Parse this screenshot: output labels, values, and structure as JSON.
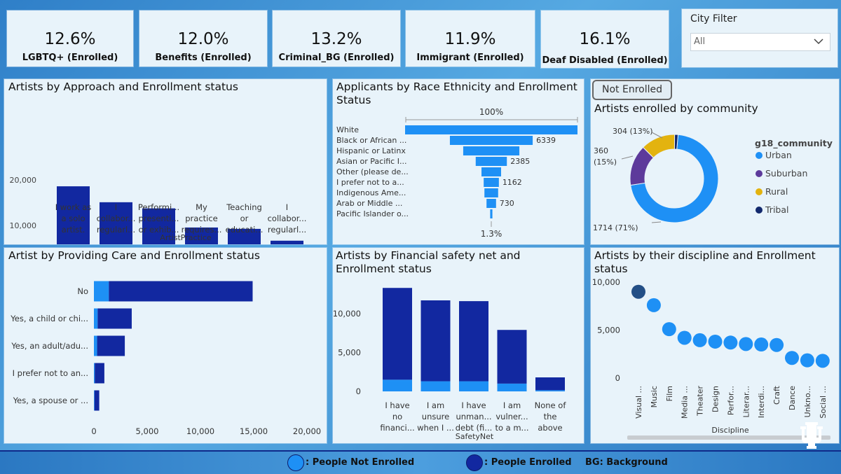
{
  "kpis": [
    {
      "value": "12.6%",
      "label": "LGBTQ+ (Enrolled)"
    },
    {
      "value": "12.0%",
      "label": "Benefits (Enrolled)"
    },
    {
      "value": "13.2%",
      "label": "Criminal_BG (Enrolled)"
    },
    {
      "value": "11.9%",
      "label": "Immigrant (Enrolled)"
    },
    {
      "value": "16.1%",
      "label": "Deaf Disabled (Enrolled)"
    }
  ],
  "city_filter": {
    "title": "City Filter",
    "selected": "All"
  },
  "toggle_button": {
    "label": "Not Enrolled"
  },
  "colors": {
    "not_enrolled": "#1e90f5",
    "enrolled": "#1228a0",
    "scatter_dark": "#234f86",
    "rural": "#e3b30f",
    "suburban": "#5d3a9b",
    "tribal": "#12296d"
  },
  "footer": {
    "not_enrolled_label": ": People Not Enrolled",
    "enrolled_label": ": People Enrolled",
    "bg_note": "BG: Background"
  },
  "chart_data": [
    {
      "id": "approach",
      "type": "bar",
      "title": "Artists by Approach and Enrollment status",
      "xlabel": "ArtistPractice",
      "ylabel": "",
      "ylim": [
        0,
        20000
      ],
      "yticks": [
        "0",
        "10,000",
        "20,000"
      ],
      "categories": [
        [
          "I work as",
          "a solo",
          "artist."
        ],
        [
          "I",
          "collabor...",
          "regularl..."
        ],
        [
          "Performi...",
          "presenti...",
          "or exhib..."
        ],
        [
          "My",
          "practice",
          "requires..."
        ],
        [
          "Teaching",
          "or",
          "educati..."
        ],
        [
          "I",
          "collabor...",
          "regularl..."
        ]
      ],
      "series": [
        {
          "name": "Not Enrolled",
          "values": [
            2000,
            1700,
            1550,
            1250,
            1150,
            850
          ]
        },
        {
          "name": "Enrolled",
          "values": [
            16600,
            13400,
            12200,
            8300,
            8100,
            5800
          ]
        }
      ],
      "stacked": true
    },
    {
      "id": "race",
      "type": "funnel",
      "title": "Applicants by Race Ethnicity and Enrollment Status",
      "top_label": "100%",
      "bottom_label": "1.3%",
      "categories": [
        "White",
        "Black or African ...",
        "Hispanic or Latinx",
        "Asian or Pacific I...",
        "Other (please de...",
        "I prefer not to a...",
        "Indigenous Ame...",
        "Arab or Middle ...",
        "Pacific Islander o..."
      ],
      "values": [
        13200,
        6339,
        4300,
        2385,
        1500,
        1162,
        1050,
        730,
        170
      ],
      "data_labels": [
        "",
        "6339",
        "",
        "2385",
        "",
        "1162",
        "",
        "730",
        ""
      ]
    },
    {
      "id": "community",
      "type": "pie",
      "donut": true,
      "title": "Artists enrolled by community",
      "legend_title": "g18_community",
      "legend_position": "right",
      "slices": [
        {
          "label": "Urban",
          "value": 1714,
          "text": "1714 (71%)"
        },
        {
          "label": "Suburban",
          "value": 360,
          "text": "360 (15%)"
        },
        {
          "label": "Rural",
          "value": 304,
          "text": "304 (13%)"
        },
        {
          "label": "Tribal",
          "value": 30,
          "text": ""
        }
      ],
      "callout_360": [
        "360",
        "(15%)"
      ]
    },
    {
      "id": "care",
      "type": "bar",
      "orientation": "horizontal",
      "title": "Artist by Providing Care and Enrollment status",
      "xlim": [
        0,
        20000
      ],
      "xticks": [
        "0",
        "5,000",
        "10,000",
        "15,000",
        "20,000"
      ],
      "categories": [
        "No",
        "Yes, a child or chi...",
        "Yes, an adult/adu...",
        "I prefer not to an...",
        "Yes, a spouse or ..."
      ],
      "series": [
        {
          "name": "Not Enrolled",
          "values": [
            1400,
            350,
            300,
            80,
            50
          ]
        },
        {
          "name": "Enrolled",
          "values": [
            13500,
            3200,
            2600,
            900,
            450
          ]
        }
      ],
      "stacked": true
    },
    {
      "id": "safety",
      "type": "bar",
      "title": "Artists by Financial safety net and Enrollment status",
      "xlabel": "SafetyNet",
      "ylim": [
        0,
        13500
      ],
      "yticks": [
        "0",
        "5,000",
        "10,000"
      ],
      "categories": [
        [
          "I have",
          "no",
          "financi..."
        ],
        [
          "I am",
          "unsure",
          "when I ..."
        ],
        [
          "I have",
          "unman...",
          "debt (fi..."
        ],
        [
          "I am",
          "vulner...",
          "to a m..."
        ],
        [
          "None of",
          "the",
          "above"
        ]
      ],
      "series": [
        {
          "name": "Not Enrolled",
          "values": [
            1500,
            1300,
            1300,
            1000,
            150
          ]
        },
        {
          "name": "Enrolled",
          "values": [
            11800,
            10400,
            10300,
            6900,
            1650
          ]
        }
      ],
      "stacked": true
    },
    {
      "id": "discipline",
      "type": "scatter",
      "title": "Artists by their discipline and Enrollment status",
      "xlabel": "Discipline",
      "ylim": [
        0,
        10000
      ],
      "yticks": [
        "0",
        "5,000",
        "10,000"
      ],
      "categories": [
        "Visual ...",
        "Music",
        "Film",
        "Media ...",
        "Theater",
        "Design",
        "Perfor...",
        "Literar...",
        "Interdi...",
        "Craft",
        "Dance",
        "Unkno...",
        "Social ..."
      ],
      "values": [
        9000,
        7600,
        5100,
        4200,
        3950,
        3800,
        3700,
        3550,
        3500,
        3450,
        2100,
        1850,
        1800
      ]
    }
  ]
}
